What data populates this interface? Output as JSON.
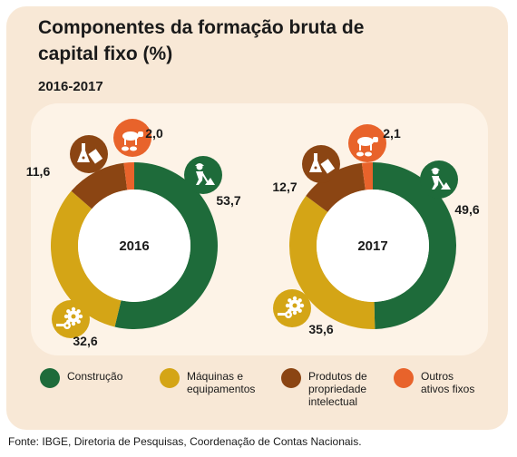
{
  "header": {
    "title": "Componentes da formação bruta de capital fixo (%)",
    "period": "2016-2017"
  },
  "legend": [
    {
      "label": "Construção",
      "color": "#1e6b3a",
      "icon": "construction-worker-icon"
    },
    {
      "label": "Máquinas e\nequipamentos",
      "color": "#d4a516",
      "icon": "gears-icon"
    },
    {
      "label": "Produtos de\npropriedade\nintelectual",
      "color": "#8b4513",
      "icon": "lab-flask-icon"
    },
    {
      "label": "Outros\nativos fixos",
      "color": "#e8632b",
      "icon": "livestock-icon"
    }
  ],
  "chart_data": [
    {
      "type": "pie",
      "title": "2016",
      "categories": [
        "Construção",
        "Máquinas e equipamentos",
        "Produtos de propriedade intelectual",
        "Outros ativos fixos"
      ],
      "values": [
        53.7,
        32.6,
        11.6,
        2.0
      ],
      "value_labels": [
        "53,7",
        "32,6",
        "11,6",
        "2,0"
      ],
      "colors": [
        "#1e6b3a",
        "#d4a516",
        "#8b4513",
        "#e8632b"
      ]
    },
    {
      "type": "pie",
      "title": "2017",
      "categories": [
        "Construção",
        "Máquinas e equipamentos",
        "Produtos de propriedade intelectual",
        "Outros ativos fixos"
      ],
      "values": [
        49.6,
        35.6,
        12.7,
        2.1
      ],
      "value_labels": [
        "49,6",
        "35,6",
        "12,7",
        "2,1"
      ],
      "colors": [
        "#1e6b3a",
        "#d4a516",
        "#8b4513",
        "#e8632b"
      ]
    }
  ],
  "footer": {
    "source": "Fonte: IBGE, Diretoria de Pesquisas, Coordenação de Contas Nacionais."
  }
}
